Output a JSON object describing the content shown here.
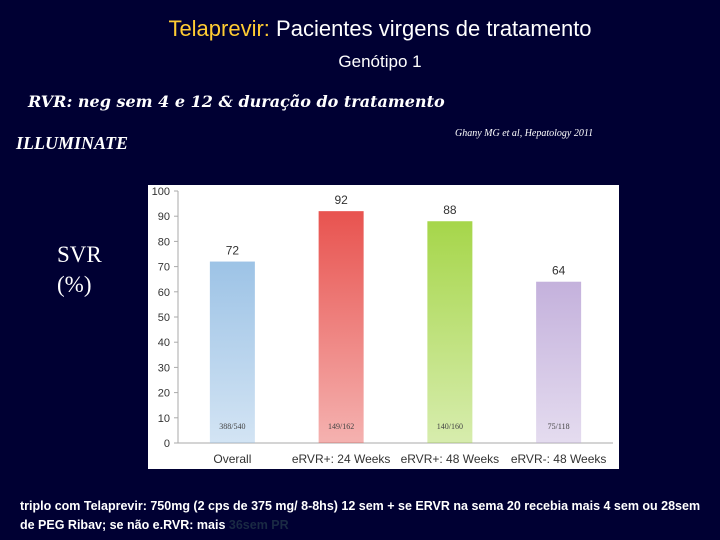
{
  "header": {
    "title_highlight": "Telaprevir:",
    "title_rest": " Pacientes virgens de tratamento",
    "subtitle": "Genótipo 1",
    "rvr_line": "RVR: neg sem 4 e 12 & duração do tratamento",
    "study": "ILLUMINATE",
    "citation": "Ghany MG et al, Hepatology 2011"
  },
  "colors": {
    "background": "#000033",
    "title_highlight": "#ffcc33"
  },
  "chart_data": {
    "type": "bar",
    "title": "",
    "ylabel": [
      "SVR",
      "(%)"
    ],
    "xlabel": "",
    "ylim": [
      0,
      100
    ],
    "yticks": [
      0,
      10,
      20,
      30,
      40,
      50,
      60,
      70,
      80,
      90,
      100
    ],
    "grid": false,
    "categories": [
      "Overall",
      "eRVR+: 24 Weeks",
      "eRVR+: 48 Weeks",
      "eRVR-: 48 Weeks"
    ],
    "values": [
      72,
      92,
      88,
      64
    ],
    "fractions": [
      "388/540",
      "149/162",
      "140/160",
      "75/118"
    ],
    "bar_colors": [
      "#9dc3e6",
      "#e8534f",
      "#a6d64a",
      "#c4b1dc"
    ]
  },
  "footnote": {
    "text": "triplo com Telaprevir: 750mg (2 cps de 375 mg/ 8-8hs) 12 sem +  se ERVR na sema 20 recebia mais 4 sem ou 28sem de PEG Ribav; se não e.RVR: mais",
    "faded": "36sem PR"
  }
}
